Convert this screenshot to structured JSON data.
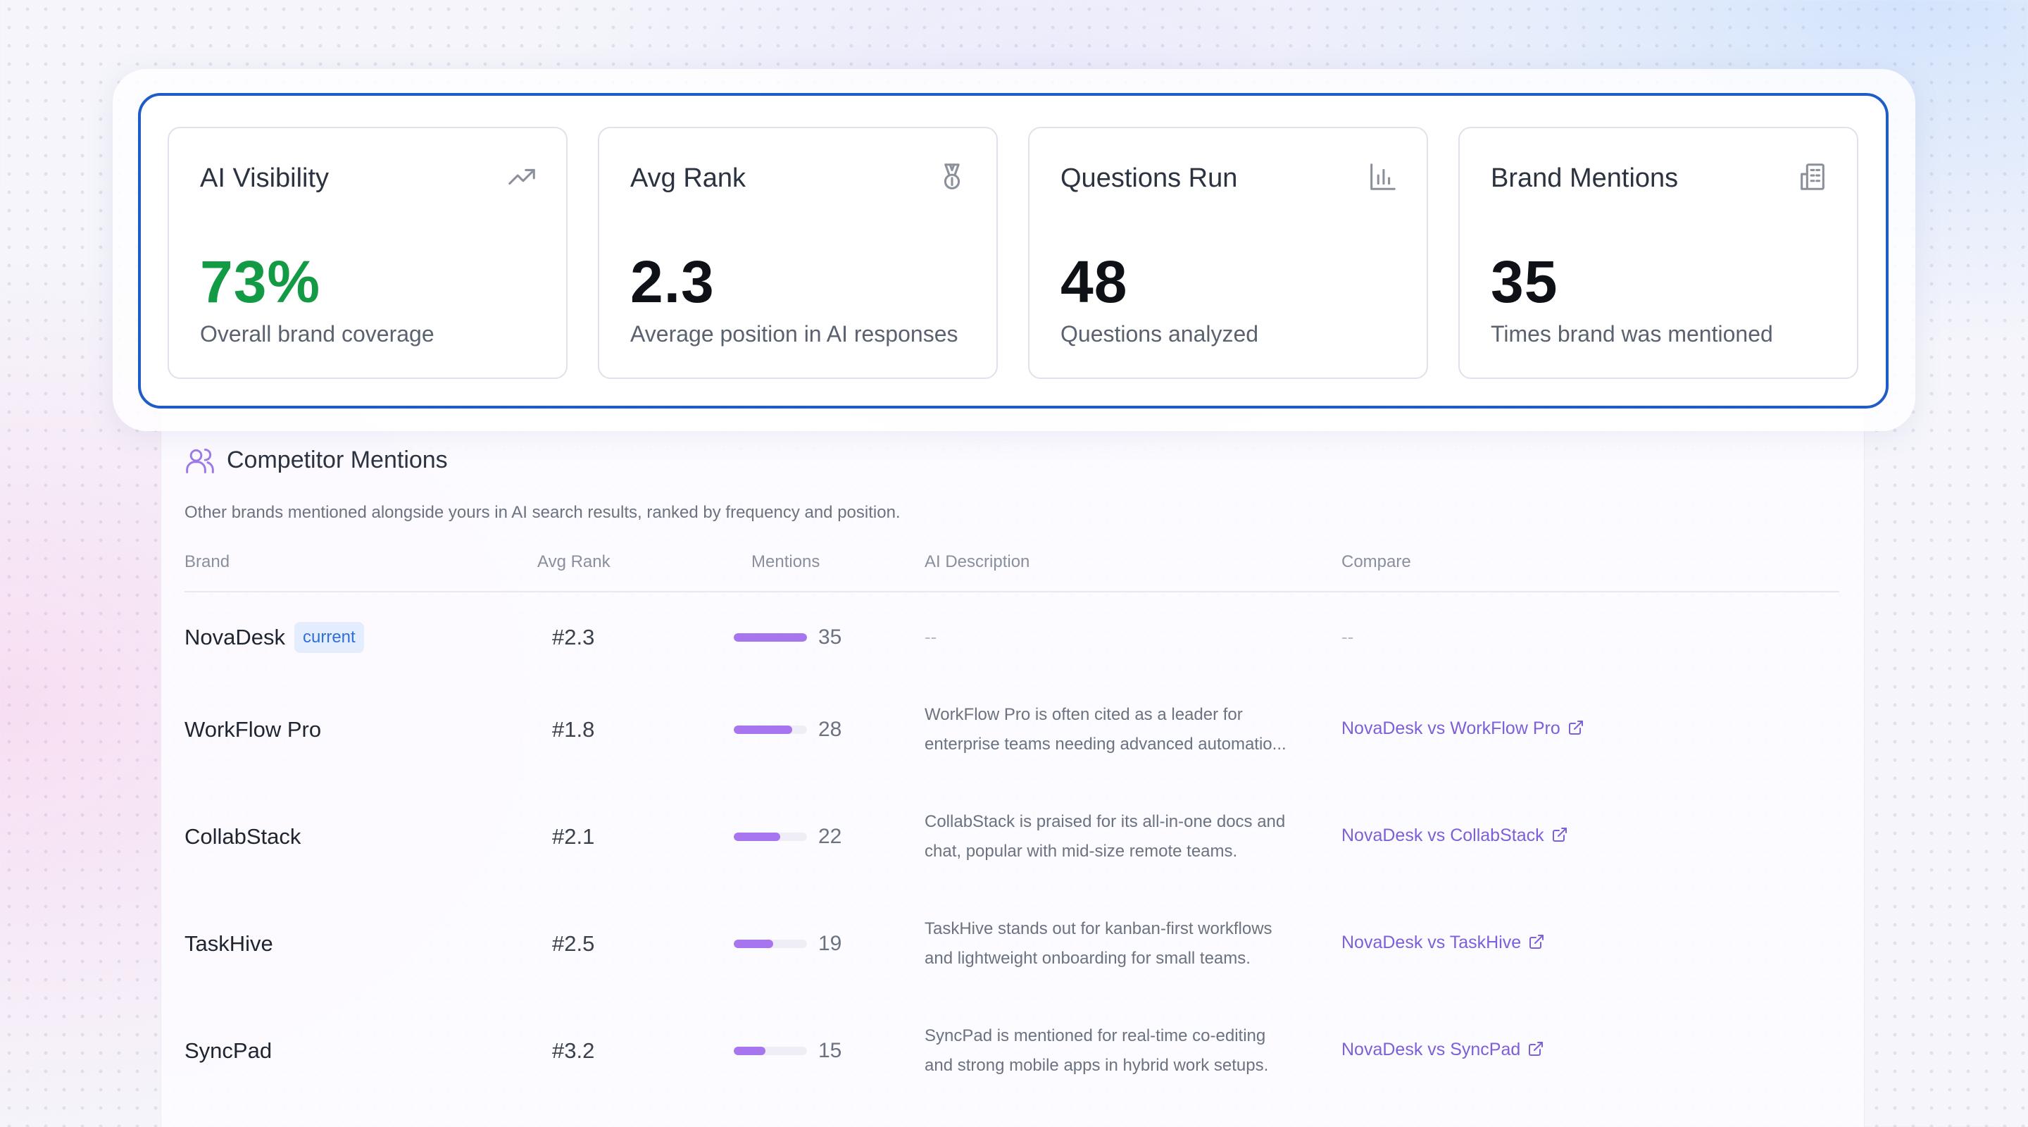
{
  "stats": [
    {
      "title": "AI Visibility",
      "value": "73%",
      "caption": "Overall brand coverage",
      "icon": "trending-up-icon"
    },
    {
      "title": "Avg Rank",
      "value": "2.3",
      "caption": "Average position in AI responses",
      "icon": "medal-icon"
    },
    {
      "title": "Questions Run",
      "value": "48",
      "caption": "Questions analyzed",
      "icon": "bar-chart-icon"
    },
    {
      "title": "Brand Mentions",
      "value": "35",
      "caption": "Times brand was mentioned",
      "icon": "building-icon"
    }
  ],
  "competitors": {
    "title": "Competitor Mentions",
    "description": "Other brands mentioned alongside yours in AI search results, ranked by frequency and position.",
    "columns": [
      "Brand",
      "Avg Rank",
      "Mentions",
      "AI Description",
      "Compare"
    ],
    "rows": [
      {
        "brand": "NovaDesk",
        "badge": "current",
        "rank": "#2.3",
        "mentions": "35",
        "mentions_fraction": 1.0,
        "desc1": "--",
        "desc2": "",
        "compare": "--"
      },
      {
        "brand": "WorkFlow Pro",
        "rank": "#1.8",
        "mentions": "28",
        "mentions_fraction": 0.8,
        "desc1": "WorkFlow Pro is often cited as a leader for",
        "desc2": "enterprise teams needing advanced automatio...",
        "compare": "NovaDesk vs WorkFlow Pro"
      },
      {
        "brand": "CollabStack",
        "rank": "#2.1",
        "mentions": "22",
        "mentions_fraction": 0.63,
        "desc1": "CollabStack is praised for its all-in-one docs and",
        "desc2": "chat, popular with mid-size remote teams.",
        "compare": "NovaDesk vs CollabStack"
      },
      {
        "brand": "TaskHive",
        "rank": "#2.5",
        "mentions": "19",
        "mentions_fraction": 0.54,
        "desc1": "TaskHive stands out for kanban-first workflows",
        "desc2": "and lightweight onboarding for small teams.",
        "compare": "NovaDesk vs TaskHive"
      },
      {
        "brand": "SyncPad",
        "rank": "#3.2",
        "mentions": "15",
        "mentions_fraction": 0.43,
        "desc1": "SyncPad is mentioned for real-time co-editing",
        "desc2": "and strong mobile apps in hybrid work setups.",
        "compare": "NovaDesk vs SyncPad"
      }
    ]
  },
  "colors": {
    "accent_blue": "#1f5cc6",
    "green": "#139a45",
    "bar_purple": "#a775ee",
    "link_purple": "#7d5fd9"
  }
}
